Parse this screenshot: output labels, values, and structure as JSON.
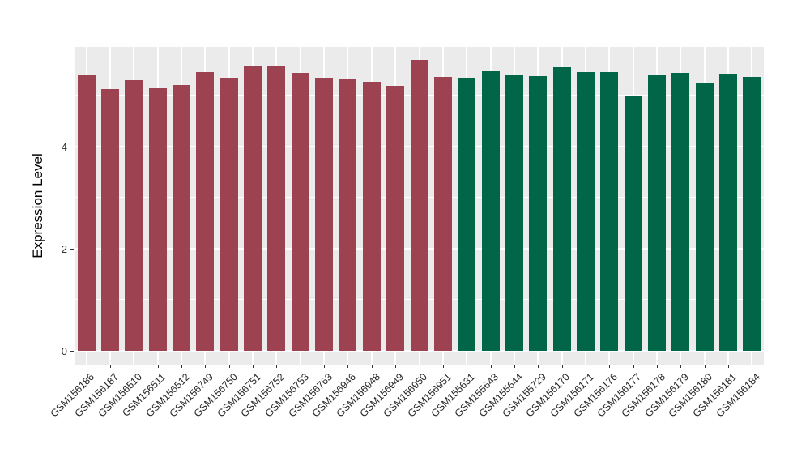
{
  "chart_data": {
    "type": "bar",
    "title": "",
    "xlabel": "",
    "ylabel": "Expression Level",
    "ylim": [
      0,
      5.95
    ],
    "yticks": [
      0,
      2,
      4
    ],
    "yticks_minor": [
      1,
      3,
      5
    ],
    "grid": true,
    "legend": false,
    "panel_background": "#EBEBEB",
    "grid_color": "#FFFFFF",
    "tick_color": "#333333",
    "groups": [
      {
        "name": "group-red",
        "color": "#9C4251"
      },
      {
        "name": "group-green",
        "color": "#016648"
      }
    ],
    "bars": [
      {
        "label": "GSM156186",
        "value": 5.41,
        "group": 0
      },
      {
        "label": "GSM156187",
        "value": 5.13,
        "group": 0
      },
      {
        "label": "GSM156510",
        "value": 5.3,
        "group": 0
      },
      {
        "label": "GSM156511",
        "value": 5.14,
        "group": 0
      },
      {
        "label": "GSM156512",
        "value": 5.21,
        "group": 0
      },
      {
        "label": "GSM156749",
        "value": 5.46,
        "group": 0
      },
      {
        "label": "GSM156750",
        "value": 5.34,
        "group": 0
      },
      {
        "label": "GSM156751",
        "value": 5.59,
        "group": 0
      },
      {
        "label": "GSM156752",
        "value": 5.58,
        "group": 0
      },
      {
        "label": "GSM156753",
        "value": 5.44,
        "group": 0
      },
      {
        "label": "GSM156763",
        "value": 5.34,
        "group": 0
      },
      {
        "label": "GSM156946",
        "value": 5.32,
        "group": 0
      },
      {
        "label": "GSM156948",
        "value": 5.27,
        "group": 0
      },
      {
        "label": "GSM156949",
        "value": 5.19,
        "group": 0
      },
      {
        "label": "GSM156950",
        "value": 5.69,
        "group": 0
      },
      {
        "label": "GSM156951",
        "value": 5.37,
        "group": 0
      },
      {
        "label": "GSM155631",
        "value": 5.35,
        "group": 1
      },
      {
        "label": "GSM155643",
        "value": 5.48,
        "group": 1
      },
      {
        "label": "GSM155644",
        "value": 5.4,
        "group": 1
      },
      {
        "label": "GSM155729",
        "value": 5.38,
        "group": 1
      },
      {
        "label": "GSM156170",
        "value": 5.56,
        "group": 1
      },
      {
        "label": "GSM156171",
        "value": 5.46,
        "group": 1
      },
      {
        "label": "GSM156176",
        "value": 5.46,
        "group": 1
      },
      {
        "label": "GSM156177",
        "value": 5.0,
        "group": 1
      },
      {
        "label": "GSM156178",
        "value": 5.39,
        "group": 1
      },
      {
        "label": "GSM156179",
        "value": 5.44,
        "group": 1
      },
      {
        "label": "GSM156180",
        "value": 5.26,
        "group": 1
      },
      {
        "label": "GSM156181",
        "value": 5.42,
        "group": 1
      },
      {
        "label": "GSM156184",
        "value": 5.37,
        "group": 1
      }
    ]
  }
}
